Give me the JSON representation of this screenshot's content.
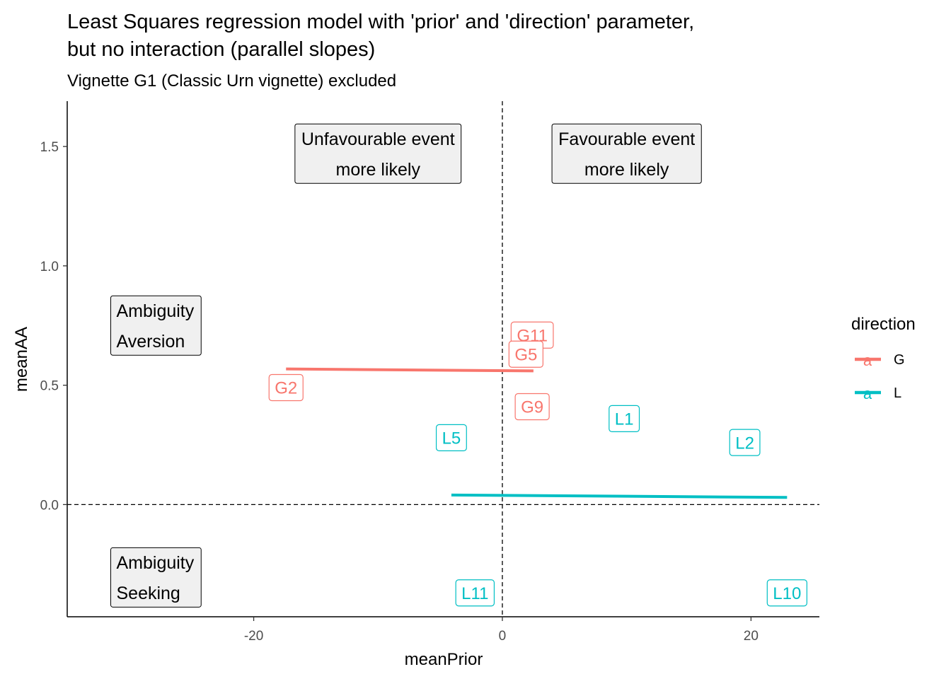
{
  "chart_data": {
    "type": "scatter",
    "title_lines": [
      "Least Squares regression model with 'prior' and 'direction' parameter,",
      "but no interaction (parallel slopes)"
    ],
    "subtitle": "Vignette G1 (Classic Urn vignette) excluded",
    "xlabel": "meanPrior",
    "ylabel": "meanAA",
    "xlim": [
      -35,
      25.5
    ],
    "ylim": [
      -0.47,
      1.69
    ],
    "xticks": [
      -20,
      0,
      20
    ],
    "xtick_labels": [
      "-20",
      "0",
      "20"
    ],
    "yticks": [
      0.0,
      0.5,
      1.0,
      1.5
    ],
    "ytick_labels": [
      "0.0",
      "0.5",
      "1.0",
      "1.5"
    ],
    "grid": false,
    "reference_lines": [
      {
        "orientation": "vertical",
        "value": 0,
        "style": "dashed"
      },
      {
        "orientation": "horizontal",
        "value": 0,
        "style": "dashed"
      }
    ],
    "legend": {
      "title": "direction",
      "placement": "right",
      "entries": [
        {
          "label": "G",
          "key_glyph": "a",
          "color": "#F8766D"
        },
        {
          "label": "L",
          "key_glyph": "a",
          "color": "#00BFC4"
        }
      ]
    },
    "series": [
      {
        "group": "G",
        "color": "#F8766D",
        "points": [
          {
            "label": "G11",
            "x": 2.4,
            "y": 0.71
          },
          {
            "label": "G5",
            "x": 1.9,
            "y": 0.63
          },
          {
            "label": "G2",
            "x": -17.4,
            "y": 0.49
          },
          {
            "label": "G9",
            "x": 2.4,
            "y": 0.41
          }
        ],
        "fit_line": {
          "x": [
            -17.4,
            2.5
          ],
          "y": [
            0.568,
            0.56
          ]
        }
      },
      {
        "group": "L",
        "color": "#00BFC4",
        "points": [
          {
            "label": "L1",
            "x": 9.8,
            "y": 0.36
          },
          {
            "label": "L2",
            "x": 19.5,
            "y": 0.26
          },
          {
            "label": "L5",
            "x": -4.1,
            "y": 0.28
          },
          {
            "label": "L11",
            "x": -2.2,
            "y": -0.37
          },
          {
            "label": "L10",
            "x": 22.9,
            "y": -0.37
          }
        ],
        "fit_line": {
          "x": [
            -4.1,
            22.9
          ],
          "y": [
            0.04,
            0.03
          ]
        }
      }
    ],
    "annotations": [
      {
        "lines": [
          "Unfavourable event",
          "more likely"
        ],
        "x": -10.0,
        "y": 1.47,
        "align": "center"
      },
      {
        "lines": [
          "Favourable event",
          "more likely"
        ],
        "x": 10.0,
        "y": 1.47,
        "align": "center"
      },
      {
        "lines": [
          "Ambiguity",
          "Aversion"
        ],
        "x": -31.5,
        "y": 0.75,
        "align": "left"
      },
      {
        "lines": [
          "Ambiguity",
          "Seeking"
        ],
        "x": -31.5,
        "y": -0.305,
        "align": "left"
      }
    ]
  }
}
